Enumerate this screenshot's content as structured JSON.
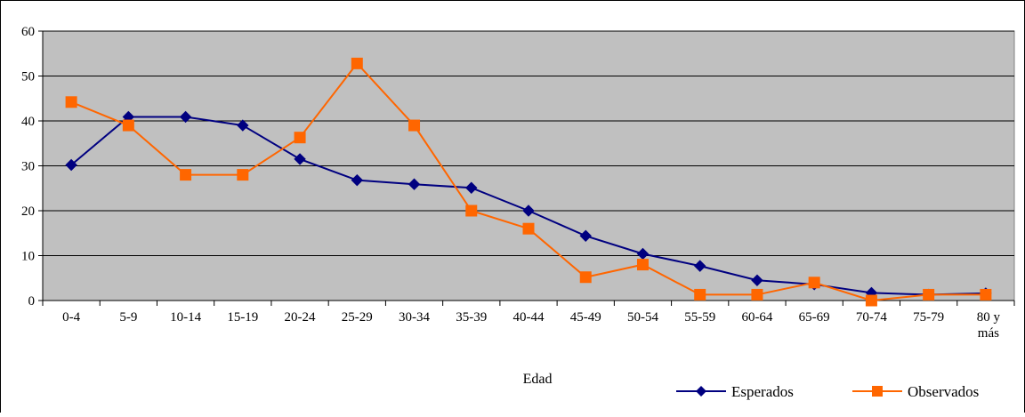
{
  "chart_data": {
    "type": "line",
    "title": "",
    "xlabel": "Edad",
    "ylabel": "",
    "ylim": [
      0,
      60
    ],
    "yticks": [
      0,
      10,
      20,
      30,
      40,
      50,
      60
    ],
    "grid": true,
    "plot_background": "#c0c0c0",
    "legend_position": "bottom-right",
    "categories": [
      "0-4",
      "5-9",
      "10-14",
      "15-19",
      "20-24",
      "25-29",
      "30-34",
      "35-39",
      "40-44",
      "45-49",
      "50-54",
      "55-59",
      "60-64",
      "65-69",
      "70-74",
      "75-79",
      "80 y más"
    ],
    "series": [
      {
        "name": "Esperados",
        "color": "#000080",
        "marker": "diamond",
        "values": [
          30.2,
          40.9,
          40.9,
          39,
          31.5,
          26.8,
          25.9,
          25.1,
          20,
          14.4,
          10.4,
          7.7,
          4.5,
          3.6,
          1.7,
          1.3,
          1.6
        ]
      },
      {
        "name": "Observados",
        "color": "#ff6600",
        "marker": "square",
        "values": [
          44.2,
          39,
          28,
          28,
          36.3,
          52.8,
          39,
          20,
          16,
          5.2,
          8,
          1.3,
          1.3,
          4,
          0,
          1.3,
          1.3
        ]
      }
    ]
  }
}
